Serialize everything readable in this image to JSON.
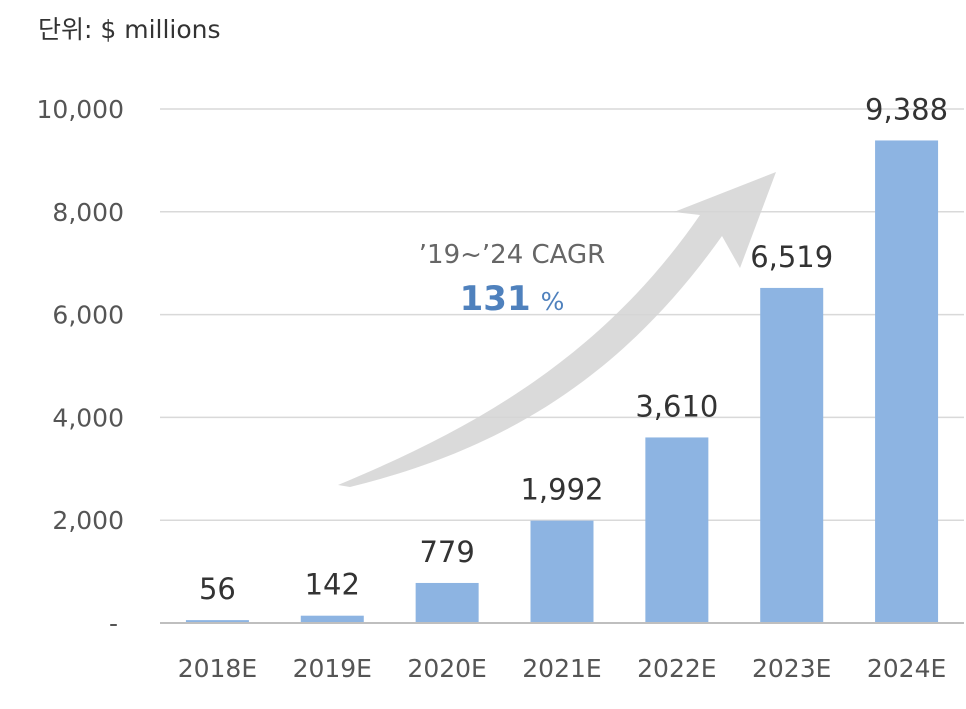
{
  "unit_label": "단위: $ millions",
  "annotation": {
    "title": "’19~’24 CAGR",
    "value": "131",
    "unit": "%"
  },
  "colors": {
    "bar": "#8db4e2",
    "grid": "#d9d9d9",
    "axis": "#bfbfbf",
    "arrow": "#d4d4d4"
  },
  "chart_data": {
    "type": "bar",
    "categories": [
      "2018E",
      "2019E",
      "2020E",
      "2021E",
      "2022E",
      "2023E",
      "2024E"
    ],
    "values": [
      56,
      142,
      779,
      1992,
      3610,
      6519,
      9388
    ],
    "data_labels": [
      "56",
      "142",
      "779",
      "1,992",
      "3,610",
      "6,519",
      "9,388"
    ],
    "y_ticks": [
      {
        "value": 0,
        "label": "-"
      },
      {
        "value": 2000,
        "label": "2,000"
      },
      {
        "value": 4000,
        "label": "4,000"
      },
      {
        "value": 6000,
        "label": "6,000"
      },
      {
        "value": 8000,
        "label": "8,000"
      },
      {
        "value": 10000,
        "label": "10,000"
      }
    ],
    "ylim": [
      0,
      10000
    ],
    "grid": true,
    "legend": "none"
  }
}
